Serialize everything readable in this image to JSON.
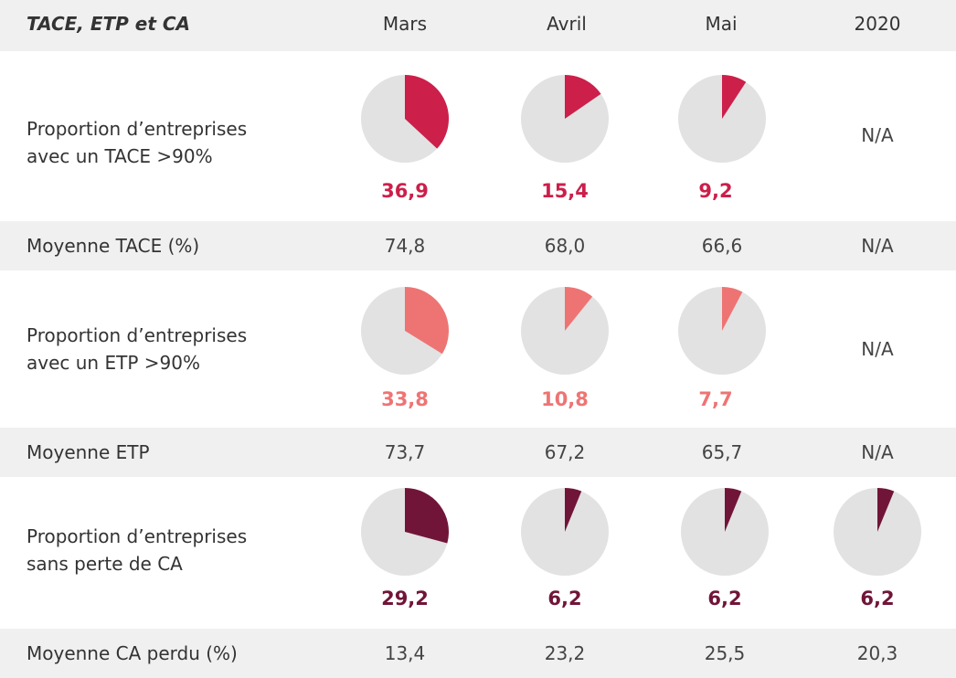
{
  "header": {
    "title": "TACE, ETP et CA",
    "columns": [
      "Mars",
      "Avril",
      "Mai",
      "2020"
    ]
  },
  "colors": {
    "pie_background": "#e2e2e2",
    "tace": "#cc1f4a",
    "etp": "#ee7474",
    "ca": "#711538",
    "row_band": "#f0f0f0"
  },
  "rows": {
    "tace_prop": {
      "label_line1": "Proportion d’entreprises",
      "label_line2": "avec un TACE >90%",
      "na": "N/A"
    },
    "tace_avg": {
      "label": "Moyenne TACE (%)",
      "values": [
        "74,8",
        "68,0",
        "66,6",
        "N/A"
      ]
    },
    "etp_prop": {
      "label_line1": "Proportion d’entreprises",
      "label_line2": "avec un ETP >90%",
      "na": "N/A"
    },
    "etp_avg": {
      "label": "Moyenne ETP",
      "values": [
        "73,7",
        "67,2",
        "65,7",
        "N/A"
      ]
    },
    "ca_prop": {
      "label_line1": "Proportion d’entreprises",
      "label_line2": "sans perte de CA"
    },
    "ca_avg": {
      "label": "Moyenne CA perdu (%)",
      "values": [
        "13,4",
        "23,2",
        "25,5",
        "20,3"
      ]
    }
  },
  "chart_data": [
    {
      "type": "pie",
      "series": "tace",
      "categories": [
        "Mars",
        "Avril",
        "Mai"
      ],
      "values": [
        36.9,
        15.4,
        9.2
      ],
      "labels": [
        "36,9",
        "15,4",
        "9,2"
      ],
      "color": "#cc1f4a"
    },
    {
      "type": "pie",
      "series": "etp",
      "categories": [
        "Mars",
        "Avril",
        "Mai"
      ],
      "values": [
        33.8,
        10.8,
        7.7
      ],
      "labels": [
        "33,8",
        "10,8",
        "7,7"
      ],
      "color": "#ee7474"
    },
    {
      "type": "pie",
      "series": "ca",
      "categories": [
        "Mars",
        "Avril",
        "Mai",
        "2020"
      ],
      "values": [
        29.2,
        6.2,
        6.2,
        6.2
      ],
      "labels": [
        "29,2",
        "6,2",
        "6,2",
        "6,2"
      ],
      "color": "#711538"
    }
  ]
}
